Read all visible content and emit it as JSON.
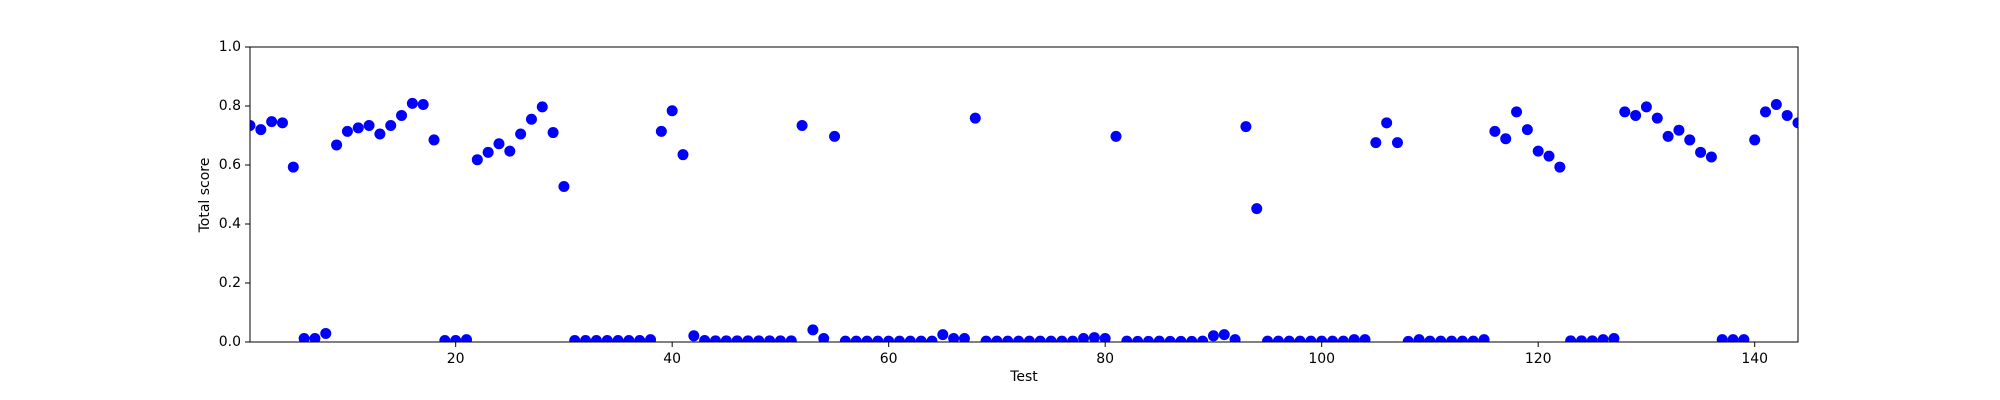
{
  "chart_data": {
    "type": "scatter",
    "xlabel": "Test",
    "ylabel": "Total score",
    "color": "#0000ff",
    "x": [
      1,
      2,
      3,
      4,
      5,
      6,
      7,
      8,
      9,
      10,
      11,
      12,
      13,
      14,
      15,
      16,
      17,
      18,
      19,
      20,
      21,
      22,
      23,
      24,
      25,
      26,
      27,
      28,
      29,
      30,
      31,
      32,
      33,
      34,
      35,
      36,
      37,
      38,
      39,
      40,
      41,
      42,
      43,
      44,
      45,
      46,
      47,
      48,
      49,
      50,
      51,
      52,
      53,
      54,
      55,
      56,
      57,
      58,
      59,
      60,
      61,
      62,
      63,
      64,
      65,
      66,
      67,
      68,
      69,
      70,
      71,
      72,
      73,
      74,
      75,
      76,
      77,
      78,
      79,
      80,
      81,
      82,
      83,
      84,
      85,
      86,
      87,
      88,
      89,
      90,
      91,
      92,
      93,
      94,
      95,
      96,
      97,
      98,
      99,
      100,
      101,
      102,
      103,
      104,
      105,
      106,
      107,
      108,
      109,
      110,
      111,
      112,
      113,
      114,
      115,
      116,
      117,
      118,
      119,
      120,
      121,
      122,
      123,
      124,
      125,
      126,
      127,
      128,
      129,
      130,
      131,
      132,
      133,
      134,
      135,
      136,
      137,
      138,
      139,
      140,
      141,
      142,
      143,
      144
    ],
    "values": [
      0.734,
      0.72,
      0.747,
      0.743,
      0.593,
      0.012,
      0.012,
      0.029,
      0.668,
      0.714,
      0.726,
      0.734,
      0.705,
      0.734,
      0.768,
      0.809,
      0.805,
      0.685,
      0.005,
      0.005,
      0.008,
      0.618,
      0.643,
      0.672,
      0.647,
      0.705,
      0.755,
      0.797,
      0.71,
      0.527,
      0.005,
      0.005,
      0.005,
      0.005,
      0.005,
      0.005,
      0.005,
      0.008,
      0.714,
      0.784,
      0.635,
      0.021,
      0.005,
      0.004,
      0.004,
      0.004,
      0.004,
      0.004,
      0.004,
      0.004,
      0.004,
      0.734,
      0.041,
      0.012,
      0.697,
      0.003,
      0.003,
      0.003,
      0.003,
      0.003,
      0.003,
      0.003,
      0.003,
      0.003,
      0.025,
      0.012,
      0.012,
      0.759,
      0.003,
      0.003,
      0.003,
      0.003,
      0.003,
      0.003,
      0.003,
      0.003,
      0.003,
      0.012,
      0.015,
      0.012,
      0.697,
      0.003,
      0.002,
      0.002,
      0.003,
      0.002,
      0.002,
      0.002,
      0.003,
      0.021,
      0.025,
      0.008,
      0.73,
      0.452,
      0.003,
      0.003,
      0.003,
      0.003,
      0.003,
      0.003,
      0.003,
      0.003,
      0.008,
      0.008,
      0.676,
      0.743,
      0.676,
      0.002,
      0.008,
      0.003,
      0.003,
      0.003,
      0.003,
      0.003,
      0.008,
      0.714,
      0.689,
      0.78,
      0.72,
      0.647,
      0.63,
      0.593,
      0.004,
      0.004,
      0.004,
      0.008,
      0.012,
      0.78,
      0.768,
      0.797,
      0.759,
      0.697,
      0.718,
      0.685,
      0.643,
      0.627,
      0.008,
      0.008,
      0.008,
      0.685,
      0.78,
      0.805,
      0.768,
      0.743
    ],
    "xlim": [
      1,
      144
    ],
    "xticks": [
      20,
      40,
      60,
      80,
      100,
      120,
      140
    ],
    "ylim": [
      0,
      1
    ],
    "yticks": [
      {
        "value": 0,
        "label": "0.0"
      },
      {
        "value": 0.2,
        "label": "0.2"
      },
      {
        "value": 0.4,
        "label": "0.4"
      },
      {
        "value": 0.6,
        "label": "0.6"
      },
      {
        "value": 0.8,
        "label": "0.8"
      },
      {
        "value": 1,
        "label": "1.0"
      }
    ],
    "grid": false
  }
}
